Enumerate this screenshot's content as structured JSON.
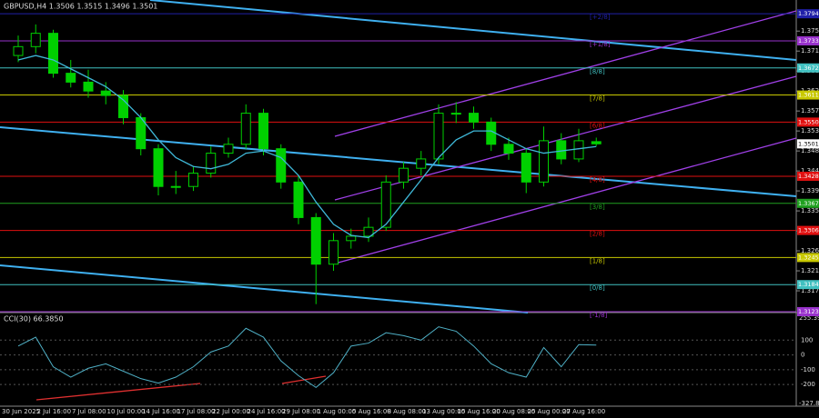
{
  "chart_data": [
    {
      "type": "candlestick",
      "title": "GBPUSD,H4 1.3506 1.3515 1.3496 1.3501",
      "categories": [
        "30 Jun 2025",
        null,
        "2 Jul 16:00",
        null,
        "7 Jul 08:00",
        null,
        "10 Jul 00:00",
        null,
        "14 Jul 16:00",
        null,
        "17 Jul 08:00",
        null,
        "22 Jul 00:00",
        null,
        "24 Jul 16:00",
        null,
        "29 Jul 08:00",
        null,
        "1 Aug 00:00",
        null,
        "5 Aug 16:00",
        null,
        "8 Aug 08:00",
        null,
        "13 Aug 00:00",
        null,
        "15 Aug 16:00",
        null,
        "20 Aug 08:00",
        null,
        "25 Aug 00:00",
        null,
        "27 Aug 16:00",
        null
      ],
      "open": [
        1.37,
        1.372,
        1.375,
        1.366,
        1.364,
        1.362,
        1.361,
        1.356,
        1.349,
        1.3405,
        1.3405,
        1.3435,
        1.348,
        1.35,
        1.357,
        1.349,
        1.3415,
        1.3335,
        1.323,
        1.3283,
        1.3293,
        1.3313,
        1.3415,
        1.3446,
        1.3467,
        1.357,
        1.357,
        1.355,
        1.35,
        1.348,
        1.3415,
        1.3508,
        1.3467,
        1.3506
      ],
      "high": [
        1.3745,
        1.377,
        1.3758,
        1.369,
        1.3668,
        1.364,
        1.3622,
        1.357,
        1.35,
        1.344,
        1.345,
        1.3495,
        1.3515,
        1.359,
        1.358,
        1.35,
        1.343,
        1.3345,
        1.33,
        1.331,
        1.3335,
        1.343,
        1.346,
        1.3485,
        1.359,
        1.3595,
        1.3585,
        1.356,
        1.3515,
        1.349,
        1.354,
        1.3525,
        1.3535,
        1.3515
      ],
      "low": [
        1.3685,
        1.3705,
        1.365,
        1.3628,
        1.3605,
        1.359,
        1.3545,
        1.3475,
        1.3385,
        1.3388,
        1.3395,
        1.3425,
        1.347,
        1.349,
        1.3475,
        1.34,
        1.332,
        1.314,
        1.3215,
        1.3265,
        1.328,
        1.3305,
        1.34,
        1.343,
        1.3455,
        1.3548,
        1.3535,
        1.3485,
        1.3465,
        1.339,
        1.3405,
        1.3455,
        1.346,
        1.3496
      ],
      "close": [
        1.372,
        1.375,
        1.366,
        1.364,
        1.362,
        1.361,
        1.356,
        1.349,
        1.3405,
        1.3405,
        1.3435,
        1.348,
        1.35,
        1.357,
        1.349,
        1.3415,
        1.3335,
        1.323,
        1.3283,
        1.3293,
        1.3313,
        1.3415,
        1.3446,
        1.3467,
        1.357,
        1.357,
        1.355,
        1.35,
        1.348,
        1.3415,
        1.3508,
        1.3467,
        1.3508,
        1.3501
      ],
      "candle_color": "#00d000",
      "ma_values": [
        1.369,
        1.37,
        1.369,
        1.367,
        1.365,
        1.363,
        1.36,
        1.356,
        1.351,
        1.347,
        1.345,
        1.3445,
        1.3455,
        1.348,
        1.3485,
        1.347,
        1.343,
        1.337,
        1.332,
        1.3295,
        1.329,
        1.332,
        1.337,
        1.342,
        1.347,
        1.351,
        1.353,
        1.353,
        1.351,
        1.349,
        1.348,
        1.3485,
        1.349,
        1.3495
      ],
      "ma_color": "#3fb8d8",
      "ylim": [
        1.3123,
        1.3825
      ],
      "yticks": [
        1.3755,
        {
          "value": 1.371,
          "label": "1.3710"
        },
        1.3665,
        {
          "value": 1.362,
          "label": "1.3620"
        },
        1.3575,
        {
          "value": 1.353,
          "label": "1.3530"
        },
        1.3485,
        {
          "value": 1.344,
          "label": "1.3440"
        },
        1.3395,
        {
          "value": 1.335,
          "label": "1.3350"
        },
        1.3305,
        {
          "value": 1.326,
          "label": "1.3260"
        },
        1.3215,
        {
          "value": 1.317,
          "label": "1.3170"
        }
      ],
      "levels": [
        {
          "value": 1.3794,
          "label": "[+2/8]",
          "color": "#2020a8"
        },
        {
          "value": 1.3733,
          "label": "[+1/8]",
          "color": "#9932cc"
        },
        {
          "value": 1.3672,
          "label": "[8/8]",
          "color": "#40c0c0"
        },
        {
          "value": 1.3611,
          "label": "[7/8]",
          "color": "#c8c800"
        },
        {
          "value": 1.355,
          "value_label": "1.3550",
          "label": "[6/8]",
          "color": "#e01010"
        },
        {
          "value": 1.3428,
          "label": "[4/8]",
          "color": "#e01010"
        },
        {
          "value": 1.3367,
          "label": "[3/8]",
          "color": "#20a020"
        },
        {
          "value": 1.3306,
          "label": "[2/8]",
          "color": "#e01010"
        },
        {
          "value": 1.3245,
          "label": "[1/8]",
          "color": "#c8c800"
        },
        {
          "value": 1.3184,
          "label": "[0/8]",
          "color": "#40c0c0"
        },
        {
          "value": 1.3123,
          "label": "[-1/8]",
          "color": "#9932cc"
        }
      ],
      "current_price": 1.3501
    },
    {
      "type": "line",
      "title": "CCI(30) 66.3850",
      "color": "#4fb0c6",
      "values": [
        60,
        120,
        -80,
        -150,
        -90,
        -60,
        -110,
        -160,
        -190,
        -150,
        -80,
        20,
        60,
        180,
        120,
        -40,
        -140,
        -220,
        -120,
        60,
        80,
        150,
        130,
        100,
        190,
        160,
        60,
        -60,
        -120,
        -150,
        50,
        -80,
        70,
        66.385
      ],
      "ylim": [
        -327.8328,
        255.3969
      ],
      "yticks": [
        100,
        0,
        -100,
        -200
      ]
    }
  ]
}
